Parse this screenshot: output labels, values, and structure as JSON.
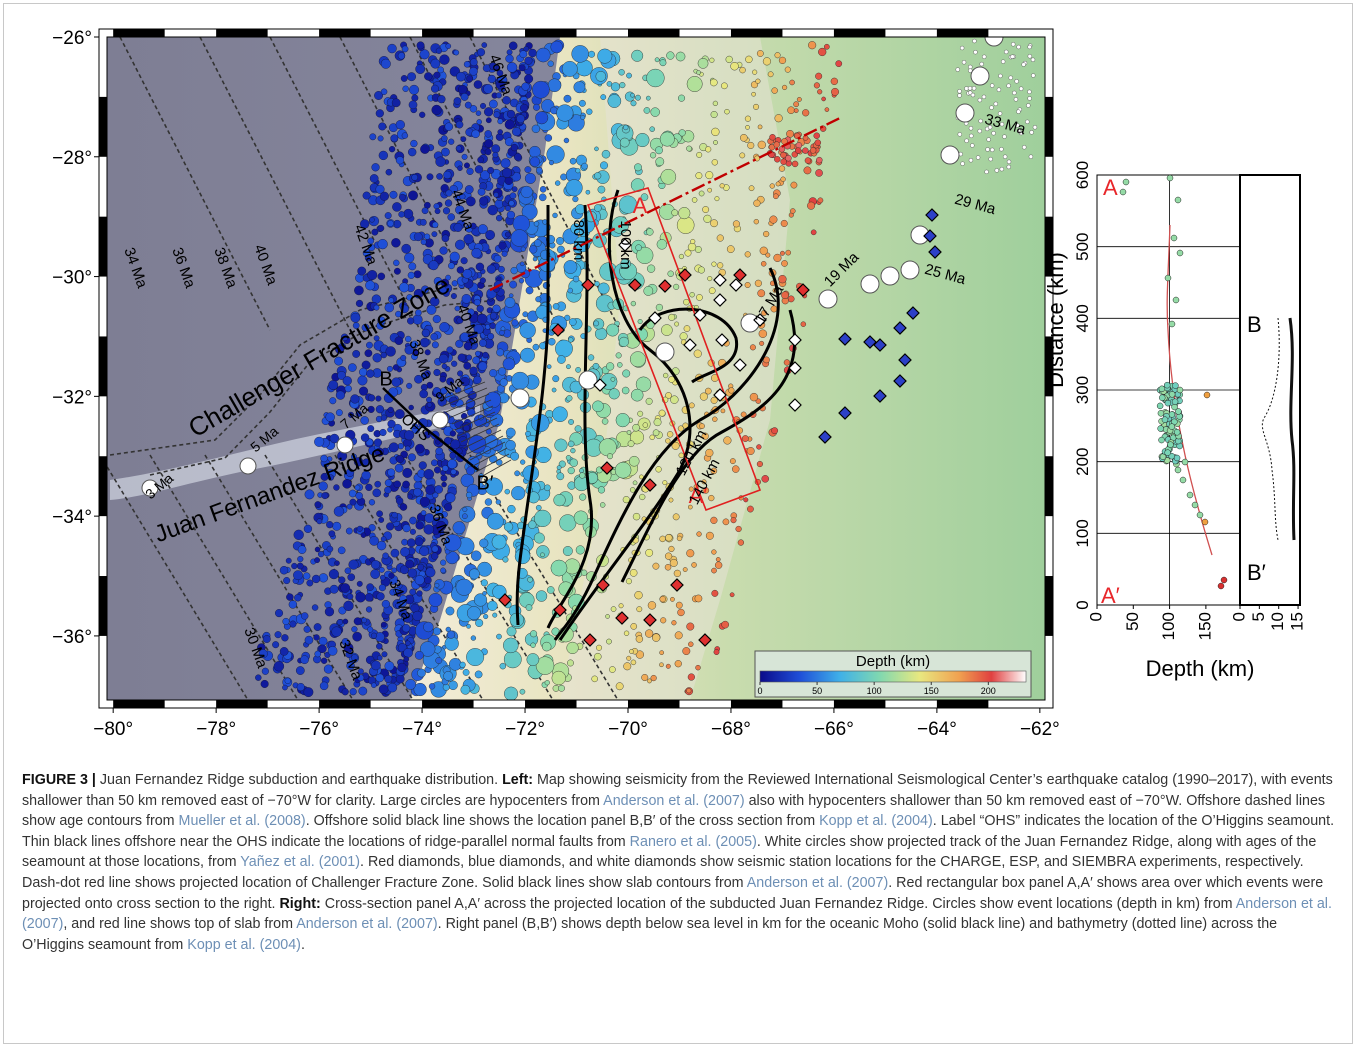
{
  "figure": {
    "map": {
      "xlim": [
        -80.12,
        -61.9
      ],
      "ylim": [
        -37.07,
        -26
      ],
      "xticks": [
        {
          "value": -80,
          "label": "−80°"
        },
        {
          "value": -78,
          "label": "−78°"
        },
        {
          "value": -76,
          "label": "−76°"
        },
        {
          "value": -74,
          "label": "−74°"
        },
        {
          "value": -72,
          "label": "−72°"
        },
        {
          "value": -70,
          "label": "−70°"
        },
        {
          "value": -68,
          "label": "−68°"
        },
        {
          "value": -66,
          "label": "−66°"
        },
        {
          "value": -64,
          "label": "−64°"
        },
        {
          "value": -62,
          "label": "−62°"
        }
      ],
      "yticks": [
        {
          "value": -26,
          "label": "−26°"
        },
        {
          "value": -28,
          "label": "−28°"
        },
        {
          "value": -30,
          "label": "−30°"
        },
        {
          "value": -32,
          "label": "−32°"
        },
        {
          "value": -34,
          "label": "−34°"
        },
        {
          "value": -36,
          "label": "−36°"
        }
      ],
      "labels": [
        "46 Ma",
        "44 Ma",
        "42 Ma",
        "40 Ma",
        "38 Ma",
        "36 Ma",
        "34 Ma",
        "40 Ma",
        "38 Ma",
        "36 Ma",
        "34 Ma",
        "32 Ma",
        "30 Ma",
        "Challenger Fracture Zone",
        "Juan Fernandez Ridge",
        "OHS",
        "B",
        "B′",
        "A",
        "A′",
        "80 km",
        "100 km",
        "120 km",
        "140 km",
        "3 Ma",
        "5 Ma",
        "7 Ma",
        "9 Ma",
        "17 Ma",
        "19 Ma",
        "25 Ma",
        "29 Ma",
        "33 Ma"
      ],
      "colorbar": {
        "title": "Depth (km)",
        "lim": [
          0,
          233
        ],
        "ticks": [
          0,
          50,
          100,
          150,
          200
        ]
      }
    },
    "cross_section": {
      "ylim": [
        0,
        600
      ],
      "yticks": [
        0,
        100,
        200,
        300,
        400,
        500,
        600
      ],
      "ylabel": "Distance (km)",
      "xlabel": "Depth (km)",
      "panels": [
        {
          "label_top": "A",
          "label_bottom": "A′",
          "label_color": "#e8262a",
          "xlim": [
            0,
            197
          ],
          "xticks": [
            0,
            50,
            100,
            150
          ]
        },
        {
          "label_top": "B",
          "label_bottom": "B′",
          "label_color": "#000000",
          "xlim": [
            0,
            15.5
          ],
          "xticks": [
            0,
            5,
            10,
            15
          ]
        }
      ]
    },
    "caption": [
      {
        "text": "FIGURE 3 |",
        "kind": "bold"
      },
      {
        "text": " Juan Fernandez Ridge subduction and earthquake distribution. ",
        "kind": "plain"
      },
      {
        "text": "Left:",
        "kind": "bold"
      },
      {
        "text": " Map showing seismicity from the Reviewed International Seismological Center’s earthquake catalog (1990–2017), with events shallower than 50 km removed east of −70°W for clarity. Large circles are hypocenters from ",
        "kind": "plain"
      },
      {
        "text": "Anderson et al. (2007)",
        "kind": "link"
      },
      {
        "text": " also with hypocenters shallower than 50 km removed east of −70°W. Offshore dashed lines show age contours from ",
        "kind": "plain"
      },
      {
        "text": "Mueller et al. (2008)",
        "kind": "link"
      },
      {
        "text": ". Offshore solid black line shows the location panel B,B′ of the cross section from ",
        "kind": "plain"
      },
      {
        "text": "Kopp et al. (2004)",
        "kind": "link"
      },
      {
        "text": ". Label “OHS” indicates the location of the O’Higgins seamount. Thin black lines offshore near the OHS indicate the locations of ridge-parallel normal faults from ",
        "kind": "plain"
      },
      {
        "text": "Ranero et al. (2005)",
        "kind": "link"
      },
      {
        "text": ". White circles show projected track of the Juan Fernandez Ridge, along with ages of the seamount at those locations, from ",
        "kind": "plain"
      },
      {
        "text": "Yañez et al. (2001)",
        "kind": "link"
      },
      {
        "text": ". Red diamonds, blue diamonds, and white diamonds show seismic station locations for the CHARGE, ESP, and SIEMBRA experiments, respectively. Dash-dot red line shows projected location of Challenger Fracture Zone. Solid black lines show slab contours from ",
        "kind": "plain"
      },
      {
        "text": "Anderson et al. (2007)",
        "kind": "link"
      },
      {
        "text": ". Red rectangular box panel A,A′ shows area over which events were projected onto cross section to the right. ",
        "kind": "plain"
      },
      {
        "text": "Right:",
        "kind": "bold"
      },
      {
        "text": " Cross-section panel A,A′ across the projected location of the subducted Juan Fernandez Ridge. Circles show event locations (depth in km) from ",
        "kind": "plain"
      },
      {
        "text": "Anderson et al. (2007)",
        "kind": "link"
      },
      {
        "text": ", and red line shows top of slab from ",
        "kind": "plain"
      },
      {
        "text": "Anderson et al. (2007)",
        "kind": "link"
      },
      {
        "text": ". Right panel (B,B′) shows depth below sea level in km for the oceanic Moho (solid black line) and bathymetry (dotted line) across the O’Higgins seamount from ",
        "kind": "plain"
      },
      {
        "text": "Kopp et al. (2004)",
        "kind": "link"
      },
      {
        "text": ".",
        "kind": "plain"
      }
    ]
  }
}
